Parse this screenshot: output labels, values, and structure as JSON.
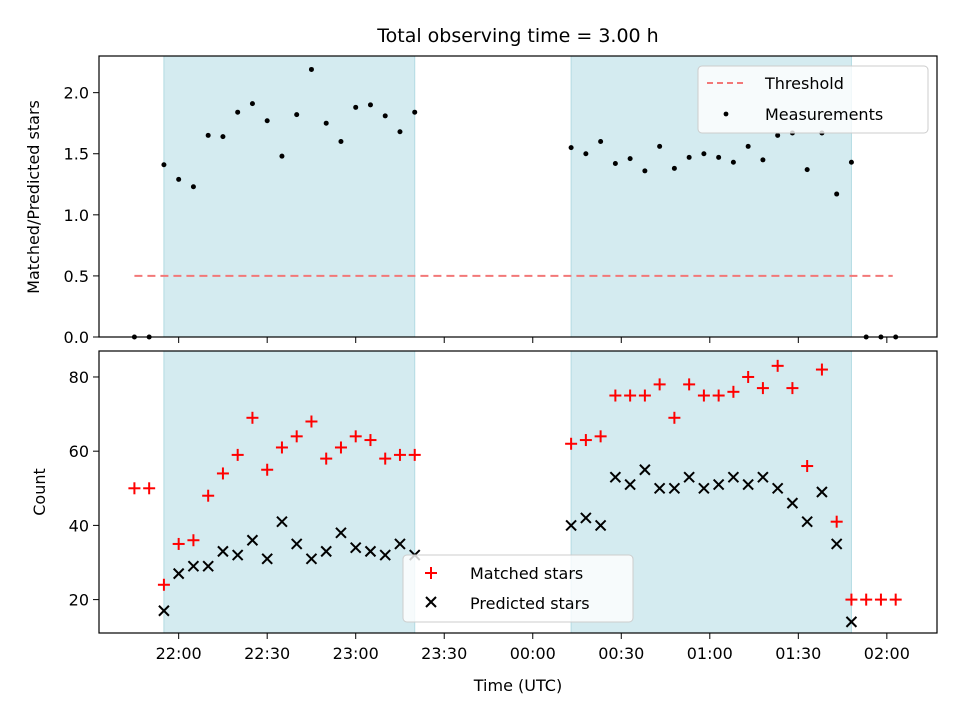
{
  "chart_data": {
    "title": "Total observing time = 3.00 h",
    "xlabel": "Time (UTC)",
    "x_ticks": [
      "22:00",
      "22:30",
      "23:00",
      "23:30",
      "00:00",
      "00:30",
      "01:00",
      "01:30",
      "02:00"
    ],
    "x_range": [
      "21:33",
      "02:17"
    ],
    "shaded_intervals": [
      [
        "21:55",
        "23:20"
      ],
      [
        "00:13",
        "01:48"
      ]
    ],
    "shade_color": "#d4ebf0",
    "panels": [
      {
        "type": "scatter",
        "ylabel": "Matched/Predicted stars",
        "ylim": [
          0,
          2.3
        ],
        "yticks": [
          "0.0",
          "0.5",
          "1.0",
          "1.5",
          "2.0"
        ],
        "legend_position": "top-right",
        "series": [
          {
            "name": "Threshold",
            "kind": "dashed-line",
            "color": "#f27878",
            "x": [
              "21:45",
              "02:02"
            ],
            "y": [
              0.5,
              0.5
            ]
          },
          {
            "name": "Measurements",
            "kind": "dot",
            "color": "#000000",
            "x": [
              "21:45",
              "21:50",
              "21:55",
              "22:00",
              "22:05",
              "22:10",
              "22:15",
              "22:20",
              "22:25",
              "22:30",
              "22:35",
              "22:40",
              "22:45",
              "22:50",
              "22:55",
              "23:00",
              "23:05",
              "23:10",
              "23:15",
              "23:20",
              "00:13",
              "00:18",
              "00:23",
              "00:28",
              "00:33",
              "00:38",
              "00:43",
              "00:48",
              "00:53",
              "00:58",
              "01:03",
              "01:08",
              "01:13",
              "01:18",
              "01:23",
              "01:28",
              "01:33",
              "01:38",
              "01:43",
              "01:48",
              "01:53",
              "01:58",
              "02:03"
            ],
            "y": [
              0,
              0,
              1.41,
              1.29,
              1.23,
              1.65,
              1.64,
              1.84,
              1.91,
              1.77,
              1.48,
              1.82,
              2.19,
              1.75,
              1.6,
              1.88,
              1.9,
              1.81,
              1.68,
              1.84,
              1.55,
              1.5,
              1.6,
              1.42,
              1.46,
              1.36,
              1.56,
              1.38,
              1.47,
              1.5,
              1.47,
              1.43,
              1.56,
              1.45,
              1.65,
              1.67,
              1.37,
              1.67,
              1.17,
              1.43,
              0,
              0,
              0
            ]
          }
        ]
      },
      {
        "type": "scatter",
        "ylabel": "Count",
        "ylim": [
          11,
          87
        ],
        "yticks": [
          "20",
          "40",
          "60",
          "80"
        ],
        "legend_position": "bottom-center",
        "series": [
          {
            "name": "Matched stars",
            "kind": "plus",
            "color": "#ff0000",
            "x": [
              "21:45",
              "21:50",
              "21:55",
              "22:00",
              "22:05",
              "22:10",
              "22:15",
              "22:20",
              "22:25",
              "22:30",
              "22:35",
              "22:40",
              "22:45",
              "22:50",
              "22:55",
              "23:00",
              "23:05",
              "23:10",
              "23:15",
              "23:20",
              "00:13",
              "00:18",
              "00:23",
              "00:28",
              "00:33",
              "00:38",
              "00:43",
              "00:48",
              "00:53",
              "00:58",
              "01:03",
              "01:08",
              "01:13",
              "01:18",
              "01:23",
              "01:28",
              "01:33",
              "01:38",
              "01:43",
              "01:48",
              "01:53",
              "01:58",
              "02:03"
            ],
            "y": [
              50,
              50,
              24,
              35,
              36,
              48,
              54,
              59,
              69,
              55,
              61,
              64,
              68,
              58,
              61,
              64,
              63,
              58,
              59,
              59,
              62,
              63,
              64,
              75,
              75,
              75,
              78,
              69,
              78,
              75,
              75,
              76,
              80,
              77,
              83,
              77,
              56,
              82,
              41,
              20,
              20,
              20,
              20
            ]
          },
          {
            "name": "Predicted stars",
            "kind": "cross",
            "color": "#000000",
            "x": [
              "21:55",
              "22:00",
              "22:05",
              "22:10",
              "22:15",
              "22:20",
              "22:25",
              "22:30",
              "22:35",
              "22:40",
              "22:45",
              "22:50",
              "22:55",
              "23:00",
              "23:05",
              "23:10",
              "23:15",
              "23:20",
              "00:13",
              "00:18",
              "00:23",
              "00:28",
              "00:33",
              "00:38",
              "00:43",
              "00:48",
              "00:53",
              "00:58",
              "01:03",
              "01:08",
              "01:13",
              "01:18",
              "01:23",
              "01:28",
              "01:33",
              "01:38",
              "01:43",
              "01:48"
            ],
            "y": [
              17,
              27,
              29,
              29,
              33,
              32,
              36,
              31,
              41,
              35,
              31,
              33,
              38,
              34,
              33,
              32,
              35,
              32,
              40,
              42,
              40,
              53,
              51,
              55,
              50,
              50,
              53,
              50,
              51,
              53,
              51,
              53,
              50,
              46,
              41,
              49,
              35,
              14
            ]
          }
        ]
      }
    ]
  }
}
